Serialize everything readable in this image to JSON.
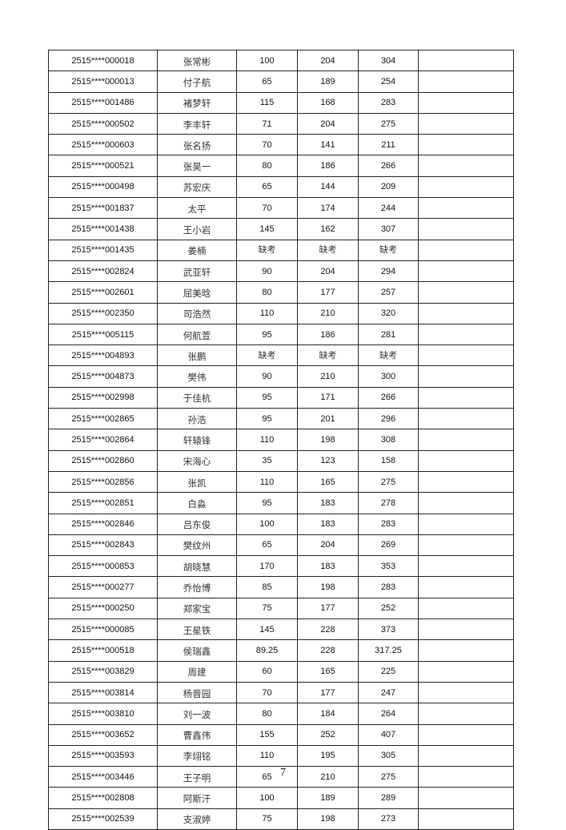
{
  "table": {
    "rows": [
      [
        "2515****000018",
        "张常彬",
        "100",
        "204",
        "304",
        ""
      ],
      [
        "2515****000013",
        "付子航",
        "65",
        "189",
        "254",
        ""
      ],
      [
        "2515****001486",
        "褚梦轩",
        "115",
        "168",
        "283",
        ""
      ],
      [
        "2515****000502",
        "李丰轩",
        "71",
        "204",
        "275",
        ""
      ],
      [
        "2515****000603",
        "张名扬",
        "70",
        "141",
        "211",
        ""
      ],
      [
        "2515****000521",
        "张昊一",
        "80",
        "186",
        "266",
        ""
      ],
      [
        "2515****000498",
        "苏宏庆",
        "65",
        "144",
        "209",
        ""
      ],
      [
        "2515****001837",
        "太平",
        "70",
        "174",
        "244",
        ""
      ],
      [
        "2515****001438",
        "王小岩",
        "145",
        "162",
        "307",
        ""
      ],
      [
        "2515****001435",
        "姜楠",
        "缺考",
        "缺考",
        "缺考",
        ""
      ],
      [
        "2515****002824",
        "武亚轩",
        "90",
        "204",
        "294",
        ""
      ],
      [
        "2515****002601",
        "屈美晗",
        "80",
        "177",
        "257",
        ""
      ],
      [
        "2515****002350",
        "司浩然",
        "110",
        "210",
        "320",
        ""
      ],
      [
        "2515****005115",
        "何航萱",
        "95",
        "186",
        "281",
        ""
      ],
      [
        "2515****004893",
        "张鹏",
        "缺考",
        "缺考",
        "缺考",
        ""
      ],
      [
        "2515****004873",
        "樊伟",
        "90",
        "210",
        "300",
        ""
      ],
      [
        "2515****002998",
        "于佳杭",
        "95",
        "171",
        "266",
        ""
      ],
      [
        "2515****002865",
        "孙浩",
        "95",
        "201",
        "296",
        ""
      ],
      [
        "2515****002864",
        "轩辕锋",
        "110",
        "198",
        "308",
        ""
      ],
      [
        "2515****002860",
        "宋海心",
        "35",
        "123",
        "158",
        ""
      ],
      [
        "2515****002856",
        "张凯",
        "110",
        "165",
        "275",
        ""
      ],
      [
        "2515****002851",
        "白淼",
        "95",
        "183",
        "278",
        ""
      ],
      [
        "2515****002846",
        "吕东俊",
        "100",
        "183",
        "283",
        ""
      ],
      [
        "2515****002843",
        "樊纹州",
        "65",
        "204",
        "269",
        ""
      ],
      [
        "2515****000853",
        "胡晓慧",
        "170",
        "183",
        "353",
        ""
      ],
      [
        "2515****000277",
        "乔怡博",
        "85",
        "198",
        "283",
        ""
      ],
      [
        "2515****000250",
        "郑家宝",
        "75",
        "177",
        "252",
        ""
      ],
      [
        "2515****000085",
        "王星铁",
        "145",
        "228",
        "373",
        ""
      ],
      [
        "2515****000518",
        "侯瑞鑫",
        "89.25",
        "228",
        "317.25",
        ""
      ],
      [
        "2515****003829",
        "周建",
        "60",
        "165",
        "225",
        ""
      ],
      [
        "2515****003814",
        "杨晋园",
        "70",
        "177",
        "247",
        ""
      ],
      [
        "2515****003810",
        "刘一波",
        "80",
        "184",
        "264",
        ""
      ],
      [
        "2515****003652",
        "曹鑫伟",
        "155",
        "252",
        "407",
        ""
      ],
      [
        "2515****003593",
        "李翊铭",
        "110",
        "195",
        "305",
        ""
      ],
      [
        "2515****003446",
        "王子明",
        "65",
        "210",
        "275",
        ""
      ],
      [
        "2515****002808",
        "阿斯汗",
        "100",
        "189",
        "289",
        ""
      ],
      [
        "2515****002539",
        "支淑婷",
        "75",
        "198",
        "273",
        ""
      ]
    ]
  },
  "page_number": "7"
}
